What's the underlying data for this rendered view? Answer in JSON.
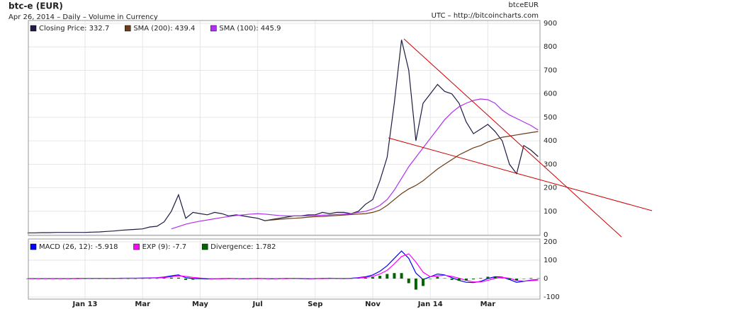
{
  "chart_data": [
    {
      "type": "line",
      "title": "btc-e (EUR)",
      "subtitle": "Apr 26, 2014 – Daily – Volume in Currency",
      "annotations": [
        "btceEUR",
        "UTC – http://bitcoincharts.com"
      ],
      "ylim": [
        0,
        900
      ],
      "yticks": [
        0,
        100,
        200,
        300,
        400,
        500,
        600,
        700,
        800,
        900
      ],
      "grid": true,
      "series": [
        {
          "name": "Closing Price: 332.7",
          "color": "#1c1c44",
          "values": [
            8,
            8,
            9,
            9,
            10,
            10,
            10,
            10,
            10,
            11,
            12,
            14,
            16,
            19,
            21,
            23,
            25,
            33,
            36,
            55,
            100,
            170,
            70,
            95,
            90,
            85,
            95,
            90,
            80,
            85,
            80,
            75,
            70,
            60,
            65,
            70,
            75,
            80,
            80,
            85,
            85,
            95,
            90,
            95,
            95,
            90,
            100,
            130,
            150,
            230,
            330,
            560,
            830,
            700,
            400,
            560,
            600,
            640,
            610,
            600,
            560,
            480,
            430,
            450,
            470,
            440,
            400,
            300,
            260,
            380,
            360,
            332.7
          ]
        },
        {
          "name": "SMA (200): 439.4",
          "color": "#6b3c17",
          "values": [
            null,
            null,
            null,
            null,
            null,
            null,
            null,
            null,
            null,
            null,
            null,
            null,
            null,
            null,
            null,
            null,
            null,
            null,
            null,
            null,
            null,
            null,
            null,
            null,
            null,
            null,
            null,
            null,
            null,
            null,
            null,
            null,
            null,
            60,
            63,
            66,
            68,
            70,
            72,
            75,
            77,
            78,
            80,
            82,
            84,
            86,
            88,
            90,
            95,
            105,
            125,
            150,
            175,
            195,
            210,
            230,
            255,
            280,
            300,
            320,
            340,
            355,
            370,
            380,
            395,
            405,
            415,
            420,
            425,
            430,
            435,
            439.4
          ]
        },
        {
          "name": "SMA (100): 445.9",
          "color": "#b030f0",
          "values": [
            null,
            null,
            null,
            null,
            null,
            null,
            null,
            null,
            null,
            null,
            null,
            null,
            null,
            null,
            null,
            null,
            null,
            null,
            null,
            null,
            25,
            35,
            45,
            52,
            58,
            63,
            68,
            73,
            78,
            82,
            85,
            88,
            90,
            88,
            85,
            82,
            80,
            80,
            80,
            81,
            82,
            83,
            85,
            86,
            88,
            90,
            95,
            100,
            110,
            125,
            150,
            190,
            240,
            290,
            330,
            370,
            410,
            450,
            490,
            520,
            545,
            560,
            572,
            578,
            575,
            560,
            530,
            510,
            495,
            480,
            465,
            445.9
          ]
        }
      ]
    },
    {
      "type": "macd",
      "categories": [
        null,
        null,
        null,
        null,
        null,
        null,
        null,
        null,
        "Jan 13",
        null,
        null,
        null,
        null,
        null,
        null,
        null,
        "Mar",
        null,
        null,
        null,
        null,
        null,
        null,
        null,
        "May",
        null,
        null,
        null,
        null,
        null,
        null,
        null,
        "Jul",
        null,
        null,
        null,
        null,
        null,
        null,
        null,
        "Sep",
        null,
        null,
        null,
        null,
        null,
        null,
        null,
        "Nov",
        null,
        null,
        null,
        null,
        null,
        null,
        null,
        "Jan 14",
        null,
        null,
        null,
        null,
        null,
        null,
        null,
        "Mar",
        null,
        null,
        null,
        null,
        null,
        null,
        null
      ],
      "ylim": [
        -100,
        200
      ],
      "yticks": [
        -100,
        0,
        100,
        200
      ],
      "grid": true,
      "series": [
        {
          "name": "MACD (26, 12): -5.918",
          "color": "#0000ff",
          "type": "line",
          "values": [
            0,
            0,
            0,
            0,
            0,
            0,
            0,
            1,
            1,
            1,
            1,
            1,
            1,
            2,
            2,
            2,
            3,
            4,
            5,
            8,
            15,
            20,
            5,
            0,
            0,
            -2,
            -1,
            0,
            1,
            0,
            -1,
            0,
            1,
            0,
            -1,
            0,
            1,
            1,
            0,
            -1,
            0,
            1,
            2,
            1,
            0,
            2,
            5,
            10,
            20,
            40,
            70,
            110,
            150,
            110,
            30,
            -5,
            10,
            25,
            20,
            5,
            -10,
            -20,
            -22,
            -15,
            0,
            10,
            8,
            -5,
            -20,
            -15,
            -8,
            -5.918
          ]
        },
        {
          "name": "EXP (9): -7.7",
          "color": "#ff00ff",
          "type": "line",
          "values": [
            0,
            0,
            0,
            0,
            0,
            0,
            0,
            0,
            1,
            1,
            1,
            1,
            1,
            1,
            2,
            2,
            2,
            3,
            4,
            5,
            10,
            15,
            12,
            6,
            3,
            0,
            -1,
            -1,
            0,
            0,
            0,
            0,
            0,
            0,
            0,
            0,
            0,
            1,
            1,
            0,
            0,
            0,
            1,
            1,
            1,
            1,
            3,
            6,
            12,
            25,
            45,
            80,
            120,
            135,
            90,
            35,
            10,
            15,
            18,
            12,
            2,
            -10,
            -18,
            -18,
            -10,
            2,
            6,
            2,
            -10,
            -14,
            -11,
            -7.7
          ]
        },
        {
          "name": "Divergence: 1.782",
          "color": "#006400",
          "type": "bar",
          "values": [
            0,
            0,
            0,
            0,
            0,
            0,
            0,
            1,
            0,
            0,
            0,
            0,
            0,
            1,
            0,
            0,
            1,
            1,
            1,
            3,
            5,
            5,
            -7,
            -6,
            -3,
            -2,
            0,
            1,
            1,
            0,
            -1,
            0,
            1,
            0,
            -1,
            0,
            1,
            0,
            -1,
            -1,
            0,
            1,
            1,
            0,
            -1,
            1,
            2,
            4,
            8,
            15,
            25,
            30,
            30,
            -25,
            -60,
            -40,
            0,
            10,
            2,
            -7,
            -12,
            -10,
            -4,
            3,
            10,
            8,
            2,
            -7,
            -10,
            -1,
            3,
            1.782
          ]
        }
      ]
    }
  ]
}
